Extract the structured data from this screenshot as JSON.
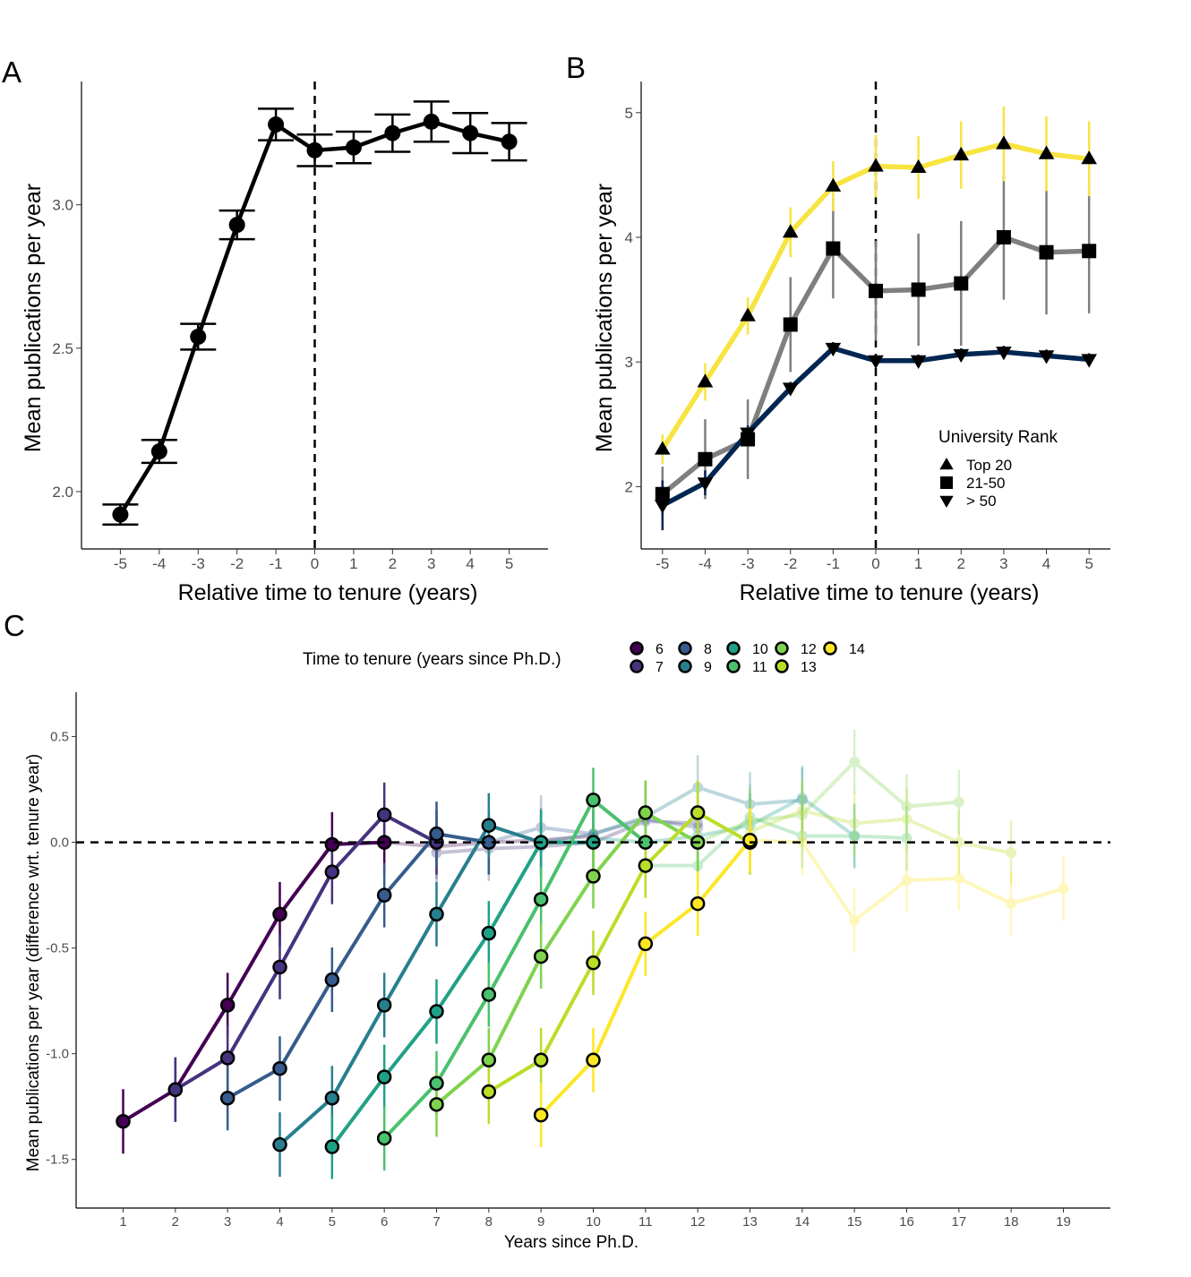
{
  "chart_data": [
    {
      "panel": "A",
      "type": "line",
      "xlabel": "Relative time to tenure (years)",
      "ylabel": "Mean publications per year",
      "x": [
        -5,
        -4,
        -3,
        -2,
        -1,
        0,
        1,
        2,
        3,
        4,
        5
      ],
      "xlim": [
        -6,
        6
      ],
      "ylim": [
        1.8,
        3.43
      ],
      "yticks": [
        2.0,
        2.5,
        3.0
      ],
      "ytick_labels": [
        "2.0",
        "2.5",
        "3.0"
      ],
      "series": [
        {
          "color": "#000000",
          "values": [
            1.92,
            2.14,
            2.54,
            2.93,
            3.28,
            3.19,
            3.2,
            3.25,
            3.29,
            3.25,
            3.22
          ],
          "err": [
            0.035,
            0.04,
            0.045,
            0.05,
            0.055,
            0.055,
            0.055,
            0.065,
            0.07,
            0.07,
            0.065
          ]
        }
      ],
      "vline": 0
    },
    {
      "panel": "B",
      "type": "line",
      "xlabel": "Relative time to tenure (years)",
      "ylabel": "Mean publications per year",
      "x": [
        -5,
        -4,
        -3,
        -2,
        -1,
        0,
        1,
        2,
        3,
        4,
        5
      ],
      "xlim": [
        -5.5,
        5.5
      ],
      "ylim": [
        1.5,
        5.25
      ],
      "yticks": [
        2,
        3,
        4,
        5
      ],
      "ytick_labels": [
        "2",
        "3",
        "4",
        "5"
      ],
      "legend": {
        "title": "University Rank",
        "position": "right-inside",
        "entries": [
          {
            "label": "Top 20",
            "marker": "triangle-up"
          },
          {
            "label": "21-50",
            "marker": "square"
          },
          {
            "label": "> 50",
            "marker": "triangle-down"
          }
        ]
      },
      "series": [
        {
          "name": "Top 20",
          "color": "#F8E440",
          "marker": "triangle-up",
          "values": [
            2.3,
            2.84,
            3.37,
            4.04,
            4.41,
            4.57,
            4.56,
            4.66,
            4.75,
            4.67,
            4.63
          ],
          "err": [
            0.12,
            0.15,
            0.15,
            0.2,
            0.2,
            0.25,
            0.25,
            0.27,
            0.3,
            0.3,
            0.3
          ]
        },
        {
          "name": "21-50",
          "color": "#7F7F7F",
          "marker": "square",
          "values": [
            1.94,
            2.22,
            2.38,
            3.3,
            3.91,
            3.57,
            3.58,
            3.63,
            4.0,
            3.88,
            3.89
          ],
          "err": [
            0.22,
            0.32,
            0.32,
            0.38,
            0.4,
            0.4,
            0.45,
            0.5,
            0.5,
            0.5,
            0.5
          ]
        },
        {
          "name": "> 50",
          "color": "#002651",
          "marker": "triangle-down",
          "values": [
            1.85,
            2.03,
            2.43,
            2.79,
            3.11,
            3.01,
            3.01,
            3.06,
            3.08,
            3.05,
            3.02
          ],
          "err": [
            0.2,
            0.1,
            0.06,
            0.05,
            0.05,
            0.05,
            0.05,
            0.05,
            0.05,
            0.05,
            0.05
          ]
        }
      ],
      "vline": 0
    },
    {
      "panel": "C",
      "type": "line",
      "xlabel": "Years since Ph.D.",
      "ylabel": "Mean publications per year (difference wrt. tenure year)",
      "xlim": [
        0.1,
        19.9
      ],
      "ylim": [
        -1.73,
        0.71
      ],
      "xticks": [
        1,
        2,
        3,
        4,
        5,
        6,
        7,
        8,
        9,
        10,
        11,
        12,
        13,
        14,
        15,
        16,
        17,
        18,
        19
      ],
      "yticks": [
        -1.5,
        -1.0,
        -0.5,
        0.0,
        0.5
      ],
      "ytick_labels": [
        "-1.5",
        "-1.0",
        "-0.5",
        "0.0",
        "0.5"
      ],
      "hline": 0,
      "legend": {
        "title": "Time to tenure (years since Ph.D.)",
        "position": "top"
      },
      "series": [
        {
          "name": "6",
          "color": "#440154",
          "pre": [
            [
              1,
              -1.32
            ],
            [
              2,
              -1.17
            ],
            [
              3,
              -0.77
            ],
            [
              4,
              -0.34
            ],
            [
              5,
              -0.01
            ],
            [
              6,
              0.0
            ]
          ],
          "post": [
            [
              6,
              0.0
            ],
            [
              7,
              -0.02
            ],
            [
              8,
              0.0
            ],
            [
              9,
              0.01
            ],
            [
              10,
              0.03
            ]
          ]
        },
        {
          "name": "7",
          "color": "#46337E",
          "pre": [
            [
              2,
              -1.17
            ],
            [
              3,
              -1.02
            ],
            [
              4,
              -0.59
            ],
            [
              5,
              -0.14
            ],
            [
              6,
              0.13
            ],
            [
              7,
              0.0
            ]
          ],
          "post": [
            [
              7,
              -0.05
            ],
            [
              8,
              -0.03
            ],
            [
              9,
              -0.02
            ],
            [
              10,
              0.0
            ],
            [
              11,
              0.1
            ],
            [
              12,
              0.09
            ]
          ]
        },
        {
          "name": "8",
          "color": "#365C8D",
          "pre": [
            [
              3,
              -1.21
            ],
            [
              4,
              -1.07
            ],
            [
              5,
              -0.65
            ],
            [
              6,
              -0.25
            ],
            [
              7,
              0.04
            ],
            [
              8,
              0.0
            ]
          ],
          "post": [
            [
              8,
              0.0
            ],
            [
              9,
              0.07
            ],
            [
              10,
              0.04
            ],
            [
              11,
              0.11
            ],
            [
              12,
              0.07
            ]
          ]
        },
        {
          "name": "9",
          "color": "#277F8E",
          "pre": [
            [
              4,
              -1.43
            ],
            [
              5,
              -1.21
            ],
            [
              6,
              -0.77
            ],
            [
              7,
              -0.34
            ],
            [
              8,
              0.08
            ],
            [
              9,
              0.0
            ]
          ],
          "post": [
            [
              9,
              0.0
            ],
            [
              10,
              0.04
            ],
            [
              11,
              0.12
            ],
            [
              12,
              0.26
            ],
            [
              13,
              0.18
            ],
            [
              14,
              0.2
            ]
          ]
        },
        {
          "name": "10",
          "color": "#1FA187",
          "pre": [
            [
              5,
              -1.44
            ],
            [
              6,
              -1.11
            ],
            [
              7,
              -0.8
            ],
            [
              8,
              -0.43
            ],
            [
              9,
              0.0
            ],
            [
              10,
              0.0
            ]
          ],
          "post": [
            [
              10,
              0.02
            ],
            [
              11,
              0.0
            ],
            [
              12,
              0.03
            ],
            [
              13,
              0.08
            ],
            [
              14,
              0.21
            ],
            [
              15,
              0.03
            ]
          ]
        },
        {
          "name": "11",
          "color": "#4AC16D",
          "pre": [
            [
              6,
              -1.4
            ],
            [
              7,
              -1.14
            ],
            [
              8,
              -0.72
            ],
            [
              9,
              -0.27
            ],
            [
              10,
              0.2
            ],
            [
              11,
              0.0
            ]
          ],
          "post": [
            [
              11,
              -0.11
            ],
            [
              12,
              -0.11
            ],
            [
              13,
              0.12
            ],
            [
              14,
              0.03
            ],
            [
              15,
              0.03
            ],
            [
              16,
              0.02
            ]
          ]
        },
        {
          "name": "12",
          "color": "#7FD34E",
          "pre": [
            [
              7,
              -1.24
            ],
            [
              8,
              -1.03
            ],
            [
              9,
              -0.54
            ],
            [
              10,
              -0.16
            ],
            [
              11,
              0.14
            ],
            [
              12,
              0.0
            ]
          ],
          "post": [
            [
              12,
              0.0
            ],
            [
              13,
              0.1
            ],
            [
              14,
              0.13
            ],
            [
              15,
              0.38
            ],
            [
              16,
              0.17
            ],
            [
              17,
              0.19
            ]
          ]
        },
        {
          "name": "13",
          "color": "#BADE28",
          "pre": [
            [
              8,
              -1.18
            ],
            [
              9,
              -1.03
            ],
            [
              10,
              -0.57
            ],
            [
              11,
              -0.11
            ],
            [
              12,
              0.14
            ],
            [
              13,
              0.0
            ]
          ],
          "post": [
            [
              13,
              0.05
            ],
            [
              14,
              0.15
            ],
            [
              15,
              0.09
            ],
            [
              16,
              0.11
            ],
            [
              17,
              0.0
            ],
            [
              18,
              -0.05
            ]
          ]
        },
        {
          "name": "14",
          "color": "#FDE725",
          "pre": [
            [
              9,
              -1.29
            ],
            [
              10,
              -1.03
            ],
            [
              11,
              -0.48
            ],
            [
              12,
              -0.29
            ],
            [
              13,
              0.01
            ]
          ],
          "post": [
            [
              13,
              0.01
            ],
            [
              14,
              0.0
            ],
            [
              15,
              -0.37
            ],
            [
              16,
              -0.18
            ],
            [
              17,
              -0.17
            ],
            [
              18,
              -0.29
            ],
            [
              19,
              -0.22
            ]
          ]
        }
      ]
    }
  ],
  "panel_labels": {
    "a": "A",
    "b": "B",
    "c": "C"
  }
}
